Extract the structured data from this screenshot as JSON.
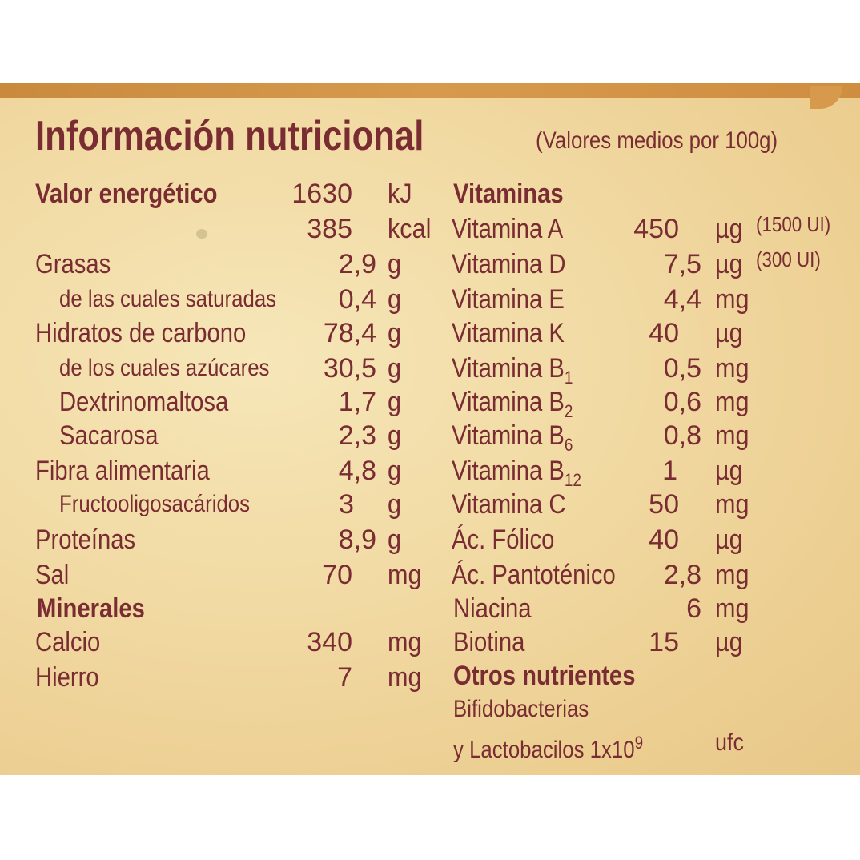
{
  "title": "Información nutricional",
  "subtitle": "(Valores medios por 100g)",
  "left": {
    "energy_label": "Valor energético",
    "energy_kj": "1630",
    "energy_kj_unit": "kJ",
    "energy_kcal": "385",
    "energy_kcal_unit": "kcal",
    "items": [
      {
        "label": "Grasas",
        "value": "2,9",
        "unit": "g"
      },
      {
        "label": "de las cuales saturadas",
        "value": "0,4",
        "unit": "g"
      },
      {
        "label": "Hidratos de carbono",
        "value": "78,4",
        "unit": "g"
      },
      {
        "label": "de los cuales azúcares",
        "value": "30,5",
        "unit": "g"
      },
      {
        "label": "Dextrinomaltosa",
        "value": "1,7",
        "unit": "g"
      },
      {
        "label": "Sacarosa",
        "value": "2,3",
        "unit": "g"
      },
      {
        "label": "Fibra alimentaria",
        "value": "4,8",
        "unit": "g"
      },
      {
        "label": "Fructooligosacáridos",
        "value": "3",
        "unit": "g"
      },
      {
        "label": "Proteínas",
        "value": "8,9",
        "unit": "g"
      },
      {
        "label": "Sal",
        "value": "70",
        "unit": "mg"
      }
    ],
    "minerals_heading": "Minerales",
    "minerals": [
      {
        "label": "Calcio",
        "value": "340",
        "unit": "mg"
      },
      {
        "label": "Hierro",
        "value": "7",
        "unit": "mg"
      }
    ]
  },
  "right": {
    "vitamins_heading": "Vitaminas",
    "vitamins": [
      {
        "label": "Vitamina A",
        "value": "450",
        "unit": "µg",
        "extra": "(1500 UI)"
      },
      {
        "label": "Vitamina D",
        "value": "7,5",
        "unit": "µg",
        "extra": "(300 UI)"
      },
      {
        "label": "Vitamina E",
        "value": "4,4",
        "unit": "mg"
      },
      {
        "label": "Vitamina K",
        "value": "40",
        "unit": "µg"
      },
      {
        "label": "Vitamina B",
        "sub": "1",
        "value": "0,5",
        "unit": "mg"
      },
      {
        "label": "Vitamina B",
        "sub": "2",
        "value": "0,6",
        "unit": "mg"
      },
      {
        "label": "Vitamina B",
        "sub": "6",
        "value": "0,8",
        "unit": "mg"
      },
      {
        "label": "Vitamina B",
        "sub": "12",
        "value": "1",
        "unit": "µg"
      },
      {
        "label": "Vitamina C",
        "value": "50",
        "unit": "mg"
      },
      {
        "label": "Ác. Fólico",
        "value": "40",
        "unit": "µg"
      },
      {
        "label": "Ác. Pantoténico",
        "value": "2,8",
        "unit": "mg"
      },
      {
        "label": "Niacina",
        "value": "6",
        "unit": "mg"
      },
      {
        "label": "Biotina",
        "value": "15",
        "unit": "µg"
      }
    ],
    "others_heading": "Otros nutrientes",
    "others_line1": "Bifidobacterias",
    "others_line2": "y Lactobacilos 1x10",
    "others_exp": "9",
    "others_unit": "ufc"
  }
}
